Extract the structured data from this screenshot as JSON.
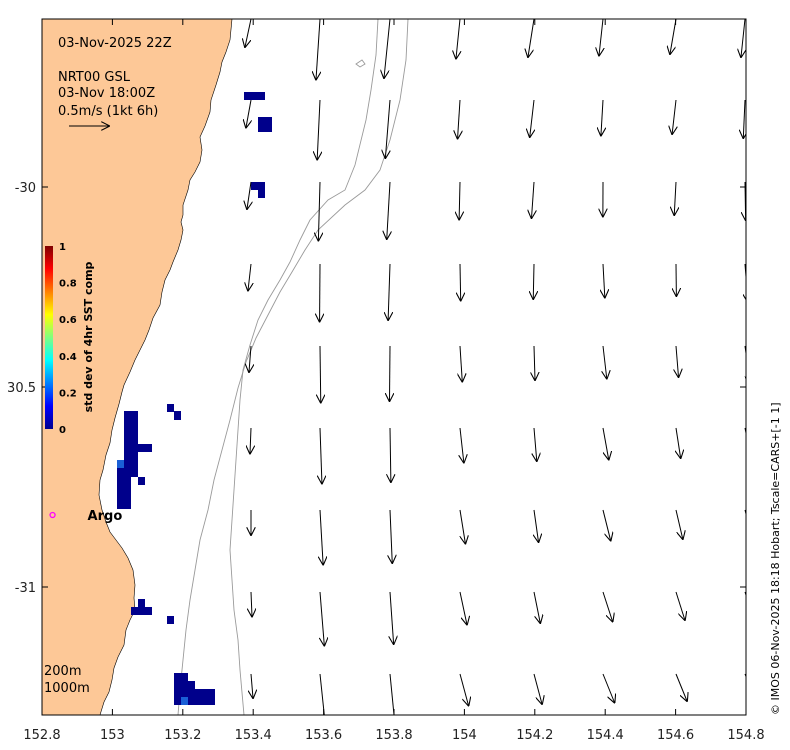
{
  "map": {
    "title_time": "03-Nov-2025 22Z",
    "current_source": "NRT00 GSL",
    "current_time": "03-Nov 18:00Z",
    "arrow_scale_label": "0.5m/s (1kt 6h)",
    "credit": "© IMOS 06-Nov-2025 18:18 Hobart; Tscale=CARS+[-1 1]",
    "depth_labels": [
      "200m",
      "1000m"
    ],
    "argo_label": "Argo",
    "lon_range": [
      152.8,
      154.8
    ],
    "lat_range": [
      -31.32,
      -29.58
    ],
    "lon_ticks": [
      {
        "value": 152.8,
        "label": "152.8"
      },
      {
        "value": 153.0,
        "label": "153"
      },
      {
        "value": 153.2,
        "label": "153.2"
      },
      {
        "value": 153.4,
        "label": "153.4"
      },
      {
        "value": 153.6,
        "label": "153.6"
      },
      {
        "value": 153.8,
        "label": "153.8"
      },
      {
        "value": 154.0,
        "label": "154"
      },
      {
        "value": 154.2,
        "label": "154.2"
      },
      {
        "value": 154.4,
        "label": "154.4"
      },
      {
        "value": 154.6,
        "label": "154.6"
      },
      {
        "value": 154.8,
        "label": "154.8"
      }
    ],
    "lat_ticks": [
      {
        "value": -30.0,
        "label": "-30"
      },
      {
        "value": -30.5,
        "label": "30.5"
      },
      {
        "value": -31.0,
        "label": "-31"
      }
    ],
    "colorbar": {
      "title": "std dev of 4hr SST comp",
      "ticks": [
        "0",
        "0.2",
        "0.4",
        "0.6",
        "0.8",
        "1"
      ],
      "colors": [
        "#00008f",
        "#0000ff",
        "#0080ff",
        "#00ffff",
        "#80ff80",
        "#ffff00",
        "#ff8000",
        "#ff0000",
        "#800000"
      ]
    },
    "colors": {
      "land": "#fdc897",
      "ocean": "#ffffff",
      "isobath": "#9a9a9a",
      "argo": "#ff00ff",
      "sst_low": "#00008b",
      "sst_mid": "#1a5fd6"
    },
    "argo_float": {
      "lon": 152.83,
      "lat": -30.82
    }
  }
}
